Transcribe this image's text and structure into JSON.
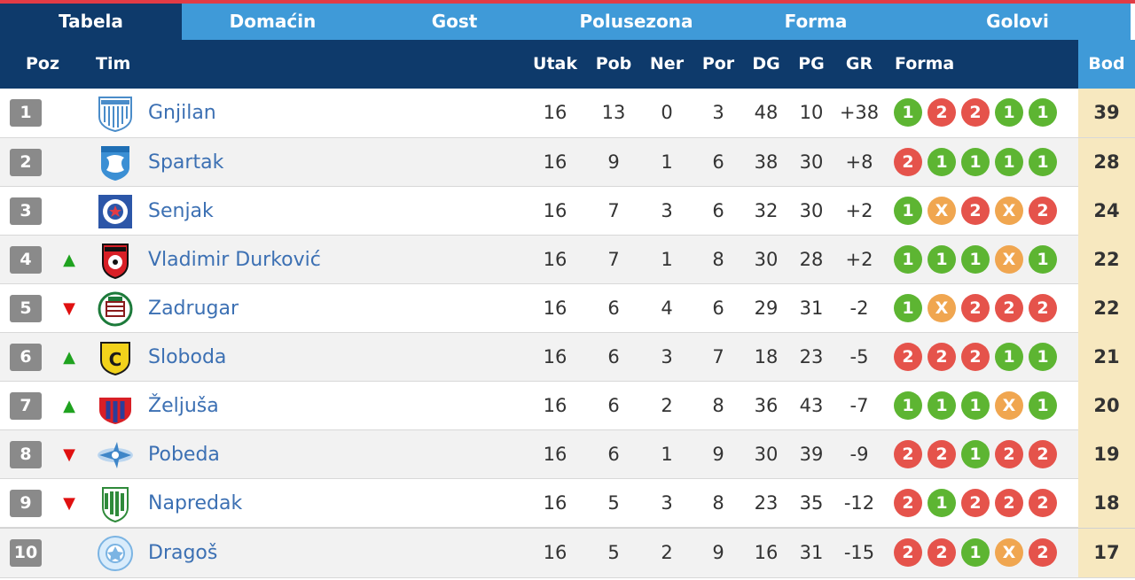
{
  "tabs": [
    "Tabela",
    "Domaćin",
    "Gost",
    "Polusezona",
    "Forma",
    "Golovi"
  ],
  "headers": {
    "poz": "Poz",
    "tim": "Tim",
    "utak": "Utak",
    "pob": "Pob",
    "ner": "Ner",
    "por": "Por",
    "dg": "DG",
    "pg": "PG",
    "gr": "GR",
    "forma": "Forma",
    "bod": "Bod"
  },
  "colors": {
    "header": "#0e3a6b",
    "tab_inactive": "#3f9ad8",
    "win": "#5db532",
    "loss": "#e5534b",
    "draw": "#f0a650",
    "points_bg": "#f7e8bf",
    "team_link": "#3c70b3"
  },
  "rows": [
    {
      "pos": "1",
      "trend": "",
      "team": "Gnjilan",
      "crest": "gnjilan-crest-icon",
      "utak": "16",
      "pob": "13",
      "ner": "0",
      "por": "3",
      "dg": "48",
      "pg": "10",
      "gr": "+38",
      "forma": [
        "1",
        "2",
        "2",
        "1",
        "1"
      ],
      "bod": "39"
    },
    {
      "pos": "2",
      "trend": "",
      "team": "Spartak",
      "crest": "spartak-crest-icon",
      "utak": "16",
      "pob": "9",
      "ner": "1",
      "por": "6",
      "dg": "38",
      "pg": "30",
      "gr": "+8",
      "forma": [
        "2",
        "1",
        "1",
        "1",
        "1"
      ],
      "bod": "28"
    },
    {
      "pos": "3",
      "trend": "",
      "team": "Senjak",
      "crest": "senjak-crest-icon",
      "utak": "16",
      "pob": "7",
      "ner": "3",
      "por": "6",
      "dg": "32",
      "pg": "30",
      "gr": "+2",
      "forma": [
        "1",
        "X",
        "2",
        "X",
        "2"
      ],
      "bod": "24"
    },
    {
      "pos": "4",
      "trend": "up",
      "team": "Vladimir Durković",
      "crest": "vladimir-durkovic-crest-icon",
      "utak": "16",
      "pob": "7",
      "ner": "1",
      "por": "8",
      "dg": "30",
      "pg": "28",
      "gr": "+2",
      "forma": [
        "1",
        "1",
        "1",
        "X",
        "1"
      ],
      "bod": "22"
    },
    {
      "pos": "5",
      "trend": "down",
      "team": "Zadrugar",
      "crest": "zadrugar-crest-icon",
      "utak": "16",
      "pob": "6",
      "ner": "4",
      "por": "6",
      "dg": "29",
      "pg": "31",
      "gr": "-2",
      "forma": [
        "1",
        "X",
        "2",
        "2",
        "2"
      ],
      "bod": "22"
    },
    {
      "pos": "6",
      "trend": "up",
      "team": "Sloboda",
      "crest": "sloboda-crest-icon",
      "utak": "16",
      "pob": "6",
      "ner": "3",
      "por": "7",
      "dg": "18",
      "pg": "23",
      "gr": "-5",
      "forma": [
        "2",
        "2",
        "2",
        "1",
        "1"
      ],
      "bod": "21"
    },
    {
      "pos": "7",
      "trend": "up",
      "team": "Željuša",
      "crest": "zeljusa-crest-icon",
      "utak": "16",
      "pob": "6",
      "ner": "2",
      "por": "8",
      "dg": "36",
      "pg": "43",
      "gr": "-7",
      "forma": [
        "1",
        "1",
        "1",
        "X",
        "1"
      ],
      "bod": "20"
    },
    {
      "pos": "8",
      "trend": "down",
      "team": "Pobeda",
      "crest": "pobeda-crest-icon",
      "utak": "16",
      "pob": "6",
      "ner": "1",
      "por": "9",
      "dg": "30",
      "pg": "39",
      "gr": "-9",
      "forma": [
        "2",
        "2",
        "1",
        "2",
        "2"
      ],
      "bod": "19"
    },
    {
      "pos": "9",
      "trend": "down",
      "team": "Napredak",
      "crest": "napredak-crest-icon",
      "utak": "16",
      "pob": "5",
      "ner": "3",
      "por": "8",
      "dg": "23",
      "pg": "35",
      "gr": "-12",
      "forma": [
        "2",
        "1",
        "2",
        "2",
        "2"
      ],
      "bod": "18"
    },
    {
      "pos": "10",
      "trend": "",
      "team": "Dragoš",
      "crest": "dragos-crest-icon",
      "utak": "16",
      "pob": "5",
      "ner": "2",
      "por": "9",
      "dg": "16",
      "pg": "31",
      "gr": "-15",
      "forma": [
        "2",
        "2",
        "1",
        "X",
        "2"
      ],
      "bod": "17"
    }
  ]
}
